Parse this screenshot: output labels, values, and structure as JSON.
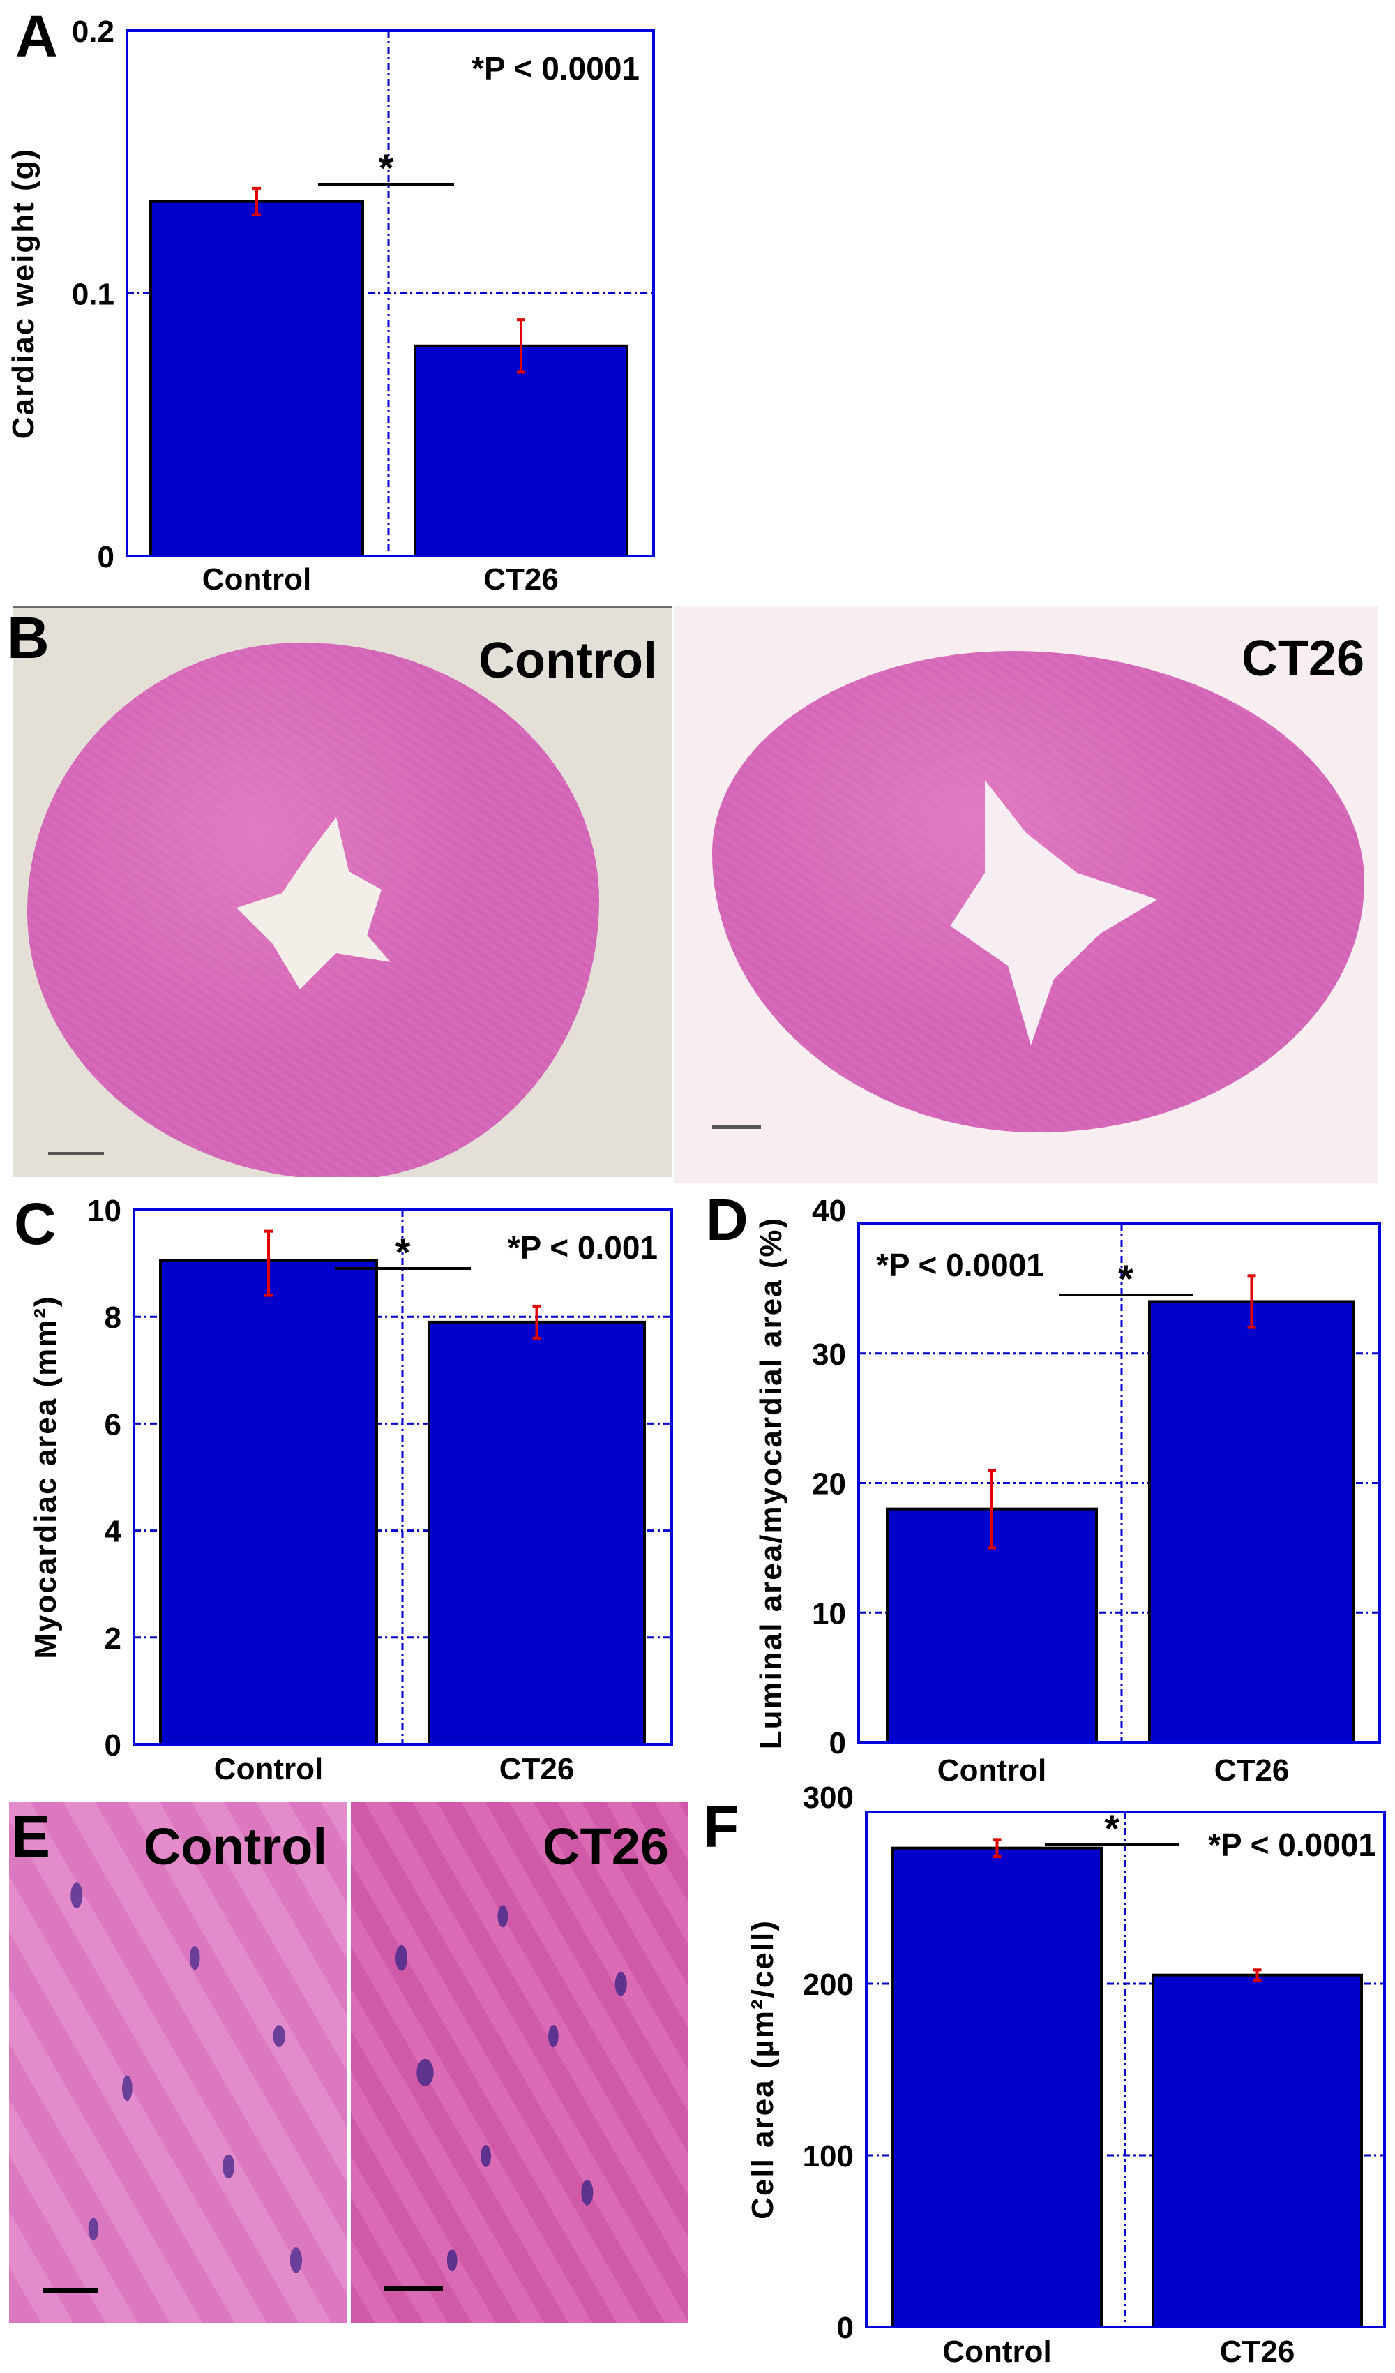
{
  "figure": {
    "panels": {
      "A": {
        "letter": "A"
      },
      "B": {
        "letter": "B",
        "left_label": "Control",
        "right_label": "CT26"
      },
      "C": {
        "letter": "C"
      },
      "D": {
        "letter": "D"
      },
      "E": {
        "letter": "E",
        "left_label": "Control",
        "right_label": "CT26"
      },
      "F": {
        "letter": "F"
      }
    }
  },
  "colors": {
    "bar_fill": "#0000CC",
    "bar_edge": "#000000",
    "frame": "#0000DD",
    "grid": "#0000CC",
    "error_bar": "#E00000",
    "text": "#000000"
  },
  "chart_data": [
    {
      "id": "A",
      "type": "bar",
      "title": "",
      "xlabel": "",
      "ylabel": "Cardiac weight (g)",
      "categories": [
        "Control",
        "CT26"
      ],
      "values": [
        0.135,
        0.08
      ],
      "error_low": [
        0.13,
        0.07
      ],
      "error_high": [
        0.14,
        0.09
      ],
      "ylim": [
        0,
        0.2
      ],
      "yticks": [
        0,
        0.1,
        0.2
      ],
      "ytick_labels": [
        "0",
        "0.1",
        "0.2"
      ],
      "grid": true,
      "annotation": "*P < 0.0001",
      "significance_marker": "*"
    },
    {
      "id": "C",
      "type": "bar",
      "title": "",
      "xlabel": "",
      "ylabel": "Myocardiac area (mm²)",
      "categories": [
        "Control",
        "CT26"
      ],
      "values": [
        9.05,
        7.9
      ],
      "error_low": [
        8.4,
        7.6
      ],
      "error_high": [
        9.6,
        8.2
      ],
      "ylim": [
        0,
        10
      ],
      "yticks": [
        0,
        2,
        4,
        6,
        8,
        10
      ],
      "ytick_labels": [
        "0",
        "2",
        "4",
        "6",
        "8",
        "10"
      ],
      "grid": true,
      "annotation": "*P < 0.001",
      "significance_marker": "*"
    },
    {
      "id": "D",
      "type": "bar",
      "title": "",
      "xlabel": "",
      "ylabel": "Luminal area/myocardial area (%)",
      "categories": [
        "Control",
        "CT26"
      ],
      "values": [
        18,
        34
      ],
      "error_low": [
        15,
        32
      ],
      "error_high": [
        21,
        36
      ],
      "ylim": [
        0,
        40
      ],
      "yticks": [
        0,
        10,
        20,
        30,
        40
      ],
      "ytick_labels": [
        "0",
        "10",
        "20",
        "30",
        "40"
      ],
      "grid": true,
      "annotation": "*P < 0.0001",
      "significance_marker": "*"
    },
    {
      "id": "F",
      "type": "bar",
      "title": "",
      "xlabel": "",
      "ylabel": "Cell area (µm²/cell)",
      "categories": [
        "Control",
        "CT26"
      ],
      "values": [
        279,
        205
      ],
      "error_low": [
        274,
        202
      ],
      "error_high": [
        284,
        208
      ],
      "ylim": [
        0,
        300
      ],
      "yticks": [
        0,
        100,
        200,
        300
      ],
      "ytick_labels": [
        "0",
        "100",
        "200",
        "300"
      ],
      "grid": true,
      "annotation": "*P < 0.0001",
      "significance_marker": "*"
    }
  ]
}
